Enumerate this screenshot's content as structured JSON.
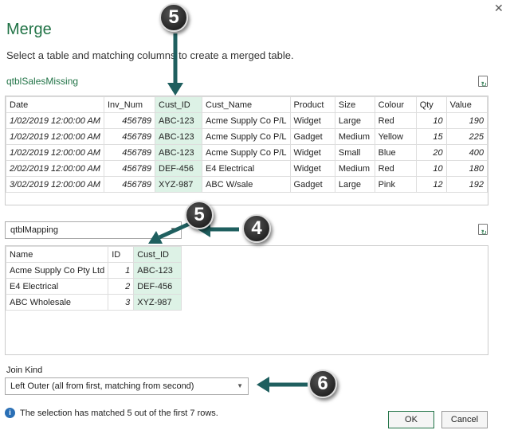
{
  "dialog": {
    "title": "Merge",
    "subtitle": "Select a table and matching columns to create a merged table.",
    "close_icon": "close-icon"
  },
  "table1": {
    "name": "qtblSalesMissing",
    "headers": [
      "Date",
      "Inv_Num",
      "Cust_ID",
      "Cust_Name",
      "Product",
      "Size",
      "Colour",
      "Qty",
      "Value"
    ],
    "rows": [
      [
        "1/02/2019 12:00:00 AM",
        "456789",
        "ABC-123",
        "Acme Supply Co P/L",
        "Widget",
        "Large",
        "Red",
        "10",
        "190"
      ],
      [
        "1/02/2019 12:00:00 AM",
        "456789",
        "ABC-123",
        "Acme Supply Co P/L",
        "Gadget",
        "Medium",
        "Yellow",
        "15",
        "225"
      ],
      [
        "1/02/2019 12:00:00 AM",
        "456789",
        "ABC-123",
        "Acme Supply Co P/L",
        "Widget",
        "Small",
        "Blue",
        "20",
        "400"
      ],
      [
        "2/02/2019 12:00:00 AM",
        "456789",
        "DEF-456",
        "E4 Electrical",
        "Widget",
        "Medium",
        "Red",
        "10",
        "180"
      ],
      [
        "3/02/2019 12:00:00 AM",
        "456789",
        "XYZ-987",
        "ABC W/sale",
        "Gadget",
        "Large",
        "Pink",
        "12",
        "192"
      ]
    ],
    "selected_column": "Cust_ID"
  },
  "table2": {
    "dropdown_value": "qtblMapping",
    "headers": [
      "Name",
      "ID",
      "Cust_ID"
    ],
    "rows": [
      [
        "Acme Supply Co Pty Ltd",
        "1",
        "ABC-123"
      ],
      [
        "E4 Electrical",
        "2",
        "DEF-456"
      ],
      [
        "ABC Wholesale",
        "3",
        "XYZ-987"
      ]
    ],
    "selected_column": "Cust_ID"
  },
  "join": {
    "label": "Join Kind",
    "value": "Left Outer (all from first, matching from second)"
  },
  "status": {
    "text": "The selection has matched 5 out of the first 7 rows."
  },
  "buttons": {
    "ok": "OK",
    "cancel": "Cancel"
  },
  "annotations": [
    "5",
    "5",
    "4",
    "6"
  ],
  "colors": {
    "accent": "#217346",
    "selected_column": "#ddf2e6",
    "arrow": "#1f5f5f"
  }
}
